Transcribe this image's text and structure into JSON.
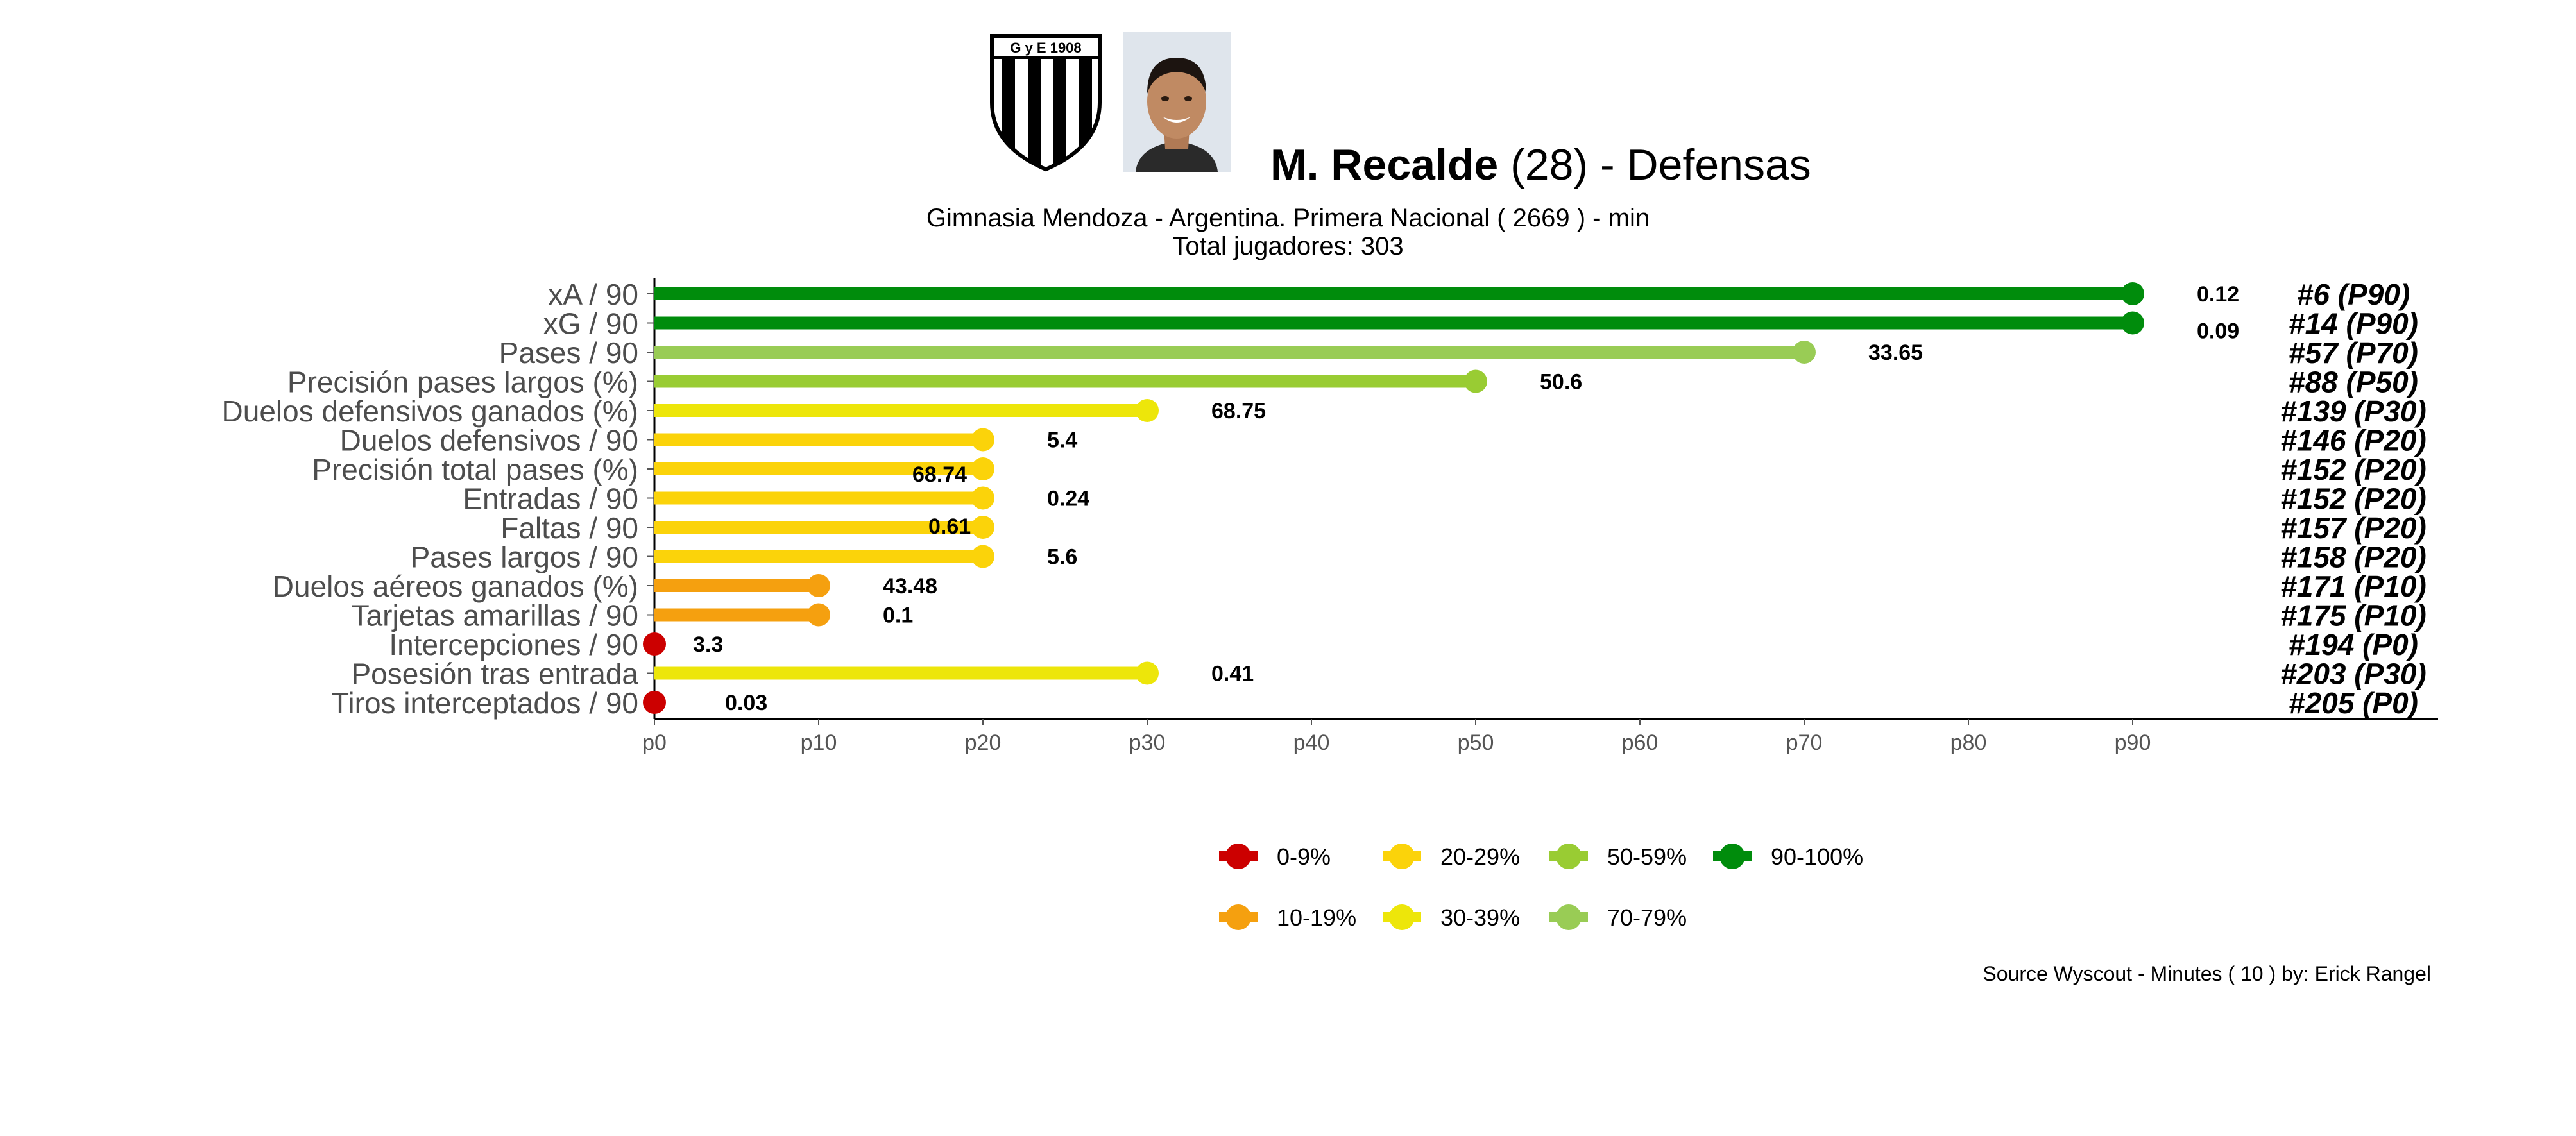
{
  "header": {
    "player_name": "M. Recalde",
    "age": "(28)",
    "position_text": "-  Defensas",
    "team_line": "Gimnasia Mendoza  -  Argentina. Primera Nacional  ( 2669 ) - min",
    "total_line": "Total jugadores:  303",
    "logo_text": "G y E  1908"
  },
  "source": "Source Wyscout - Minutes ( 10 ) by: Erick Rangel",
  "chart_data": {
    "type": "lollipop",
    "x_ticks": [
      "p0",
      "p10",
      "p20",
      "p30",
      "p40",
      "p50",
      "p60",
      "p70",
      "p80",
      "p90"
    ],
    "xlim": [
      0,
      100
    ],
    "grid": false,
    "legend_position": "bottom-center",
    "legend": [
      {
        "label": "0-9%",
        "color": "#cc0000"
      },
      {
        "label": "10-19%",
        "color": "#f5a00f"
      },
      {
        "label": "20-29%",
        "color": "#fbd30a"
      },
      {
        "label": "30-39%",
        "color": "#ede60a"
      },
      {
        "label": "50-59%",
        "color": "#99cc33"
      },
      {
        "label": "70-79%",
        "color": "#99cc55"
      },
      {
        "label": "90-100%",
        "color": "#008c0c"
      }
    ],
    "rows": [
      {
        "metric": "xA / 90",
        "percentile": 90,
        "value": "0.12",
        "rank": "#6 (P90)",
        "color": "#008c0c"
      },
      {
        "metric": "xG / 90",
        "percentile": 90,
        "value": "0.09",
        "rank": "#14 (P90)",
        "color": "#008c0c"
      },
      {
        "metric": "Pases / 90",
        "percentile": 70,
        "value": "33.65",
        "rank": "#57 (P70)",
        "color": "#99cc55"
      },
      {
        "metric": "Precisión pases largos (%)",
        "percentile": 50,
        "value": "50.6",
        "rank": "#88 (P50)",
        "color": "#99cc33"
      },
      {
        "metric": "Duelos defensivos ganados (%)",
        "percentile": 30,
        "value": "68.75",
        "rank": "#139 (P30)",
        "color": "#ede60a"
      },
      {
        "metric": "Duelos defensivos / 90",
        "percentile": 20,
        "value": "5.4",
        "rank": "#146 (P20)",
        "color": "#fbd30a"
      },
      {
        "metric": "Precisión total pases (%)",
        "percentile": 20,
        "value": "68.74",
        "rank": "#152 (P20)",
        "color": "#fbd30a"
      },
      {
        "metric": "Entradas / 90",
        "percentile": 20,
        "value": "0.24",
        "rank": "#152 (P20)",
        "color": "#fbd30a"
      },
      {
        "metric": "Faltas / 90",
        "percentile": 20,
        "value": "0.61",
        "rank": "#157 (P20)",
        "color": "#fbd30a"
      },
      {
        "metric": "Pases largos / 90",
        "percentile": 20,
        "value": "5.6",
        "rank": "#158 (P20)",
        "color": "#fbd30a"
      },
      {
        "metric": "Duelos aéreos ganados (%)",
        "percentile": 10,
        "value": "43.48",
        "rank": "#171 (P10)",
        "color": "#f5a00f"
      },
      {
        "metric": "Tarjetas amarillas / 90",
        "percentile": 10,
        "value": "0.1",
        "rank": "#175 (P10)",
        "color": "#f5a00f"
      },
      {
        "metric": "Intercepciones / 90",
        "percentile": 0,
        "value": "3.3",
        "rank": "#194 (P0)",
        "color": "#cc0000"
      },
      {
        "metric": "Posesión tras entrada",
        "percentile": 30,
        "value": "0.41",
        "rank": "#203 (P30)",
        "color": "#ede60a"
      },
      {
        "metric": "Tiros interceptados / 90",
        "percentile": 0,
        "value": "0.03",
        "rank": "#205 (P0)",
        "color": "#cc0000"
      }
    ]
  }
}
